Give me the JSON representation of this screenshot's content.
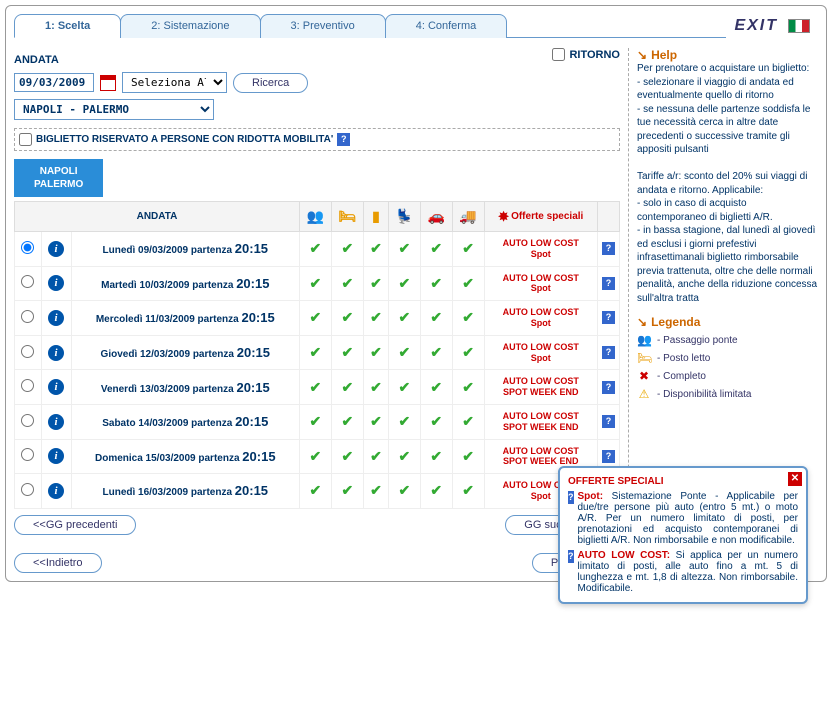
{
  "tabs": [
    {
      "label": "1: Scelta"
    },
    {
      "label": "2: Sistemazione"
    },
    {
      "label": "3: Preventivo"
    },
    {
      "label": "4: Conferma"
    }
  ],
  "exit_label": "EXIT",
  "andata_label": "ANDATA",
  "ritorno_label": "RITORNO",
  "date_value": "09/03/2009",
  "allot_value": "Seleziona Allotm",
  "route_value": "NAPOLI - PALERMO",
  "ricerca_label": "Ricerca",
  "disabled_ticket_label": "BIGLIETTO RISERVATO A PERSONE CON RIDOTTA MOBILITA'",
  "route_btn_line1": "NAPOLI",
  "route_btn_line2": "PALERMO",
  "col_andata": "ANDATA",
  "col_offerte": "Offerte speciali",
  "rows": [
    {
      "day": "Lunedì 09/03/2009 partenza",
      "time": "20:15",
      "offer1": "AUTO LOW COST",
      "offer2": "Spot",
      "selected": true
    },
    {
      "day": "Martedì 10/03/2009 partenza",
      "time": "20:15",
      "offer1": "AUTO LOW COST",
      "offer2": "Spot",
      "selected": false
    },
    {
      "day": "Mercoledì 11/03/2009 partenza",
      "time": "20:15",
      "offer1": "AUTO LOW COST",
      "offer2": "Spot",
      "selected": false
    },
    {
      "day": "Giovedì 12/03/2009 partenza",
      "time": "20:15",
      "offer1": "AUTO LOW COST",
      "offer2": "Spot",
      "selected": false
    },
    {
      "day": "Venerdì 13/03/2009 partenza",
      "time": "20:15",
      "offer1": "AUTO LOW COST",
      "offer2": "SPOT WEEK END",
      "selected": false
    },
    {
      "day": "Sabato 14/03/2009 partenza",
      "time": "20:15",
      "offer1": "AUTO LOW COST",
      "offer2": "SPOT WEEK END",
      "selected": false
    },
    {
      "day": "Domenica 15/03/2009 partenza",
      "time": "20:15",
      "offer1": "AUTO LOW COST",
      "offer2": "SPOT WEEK END",
      "selected": false
    },
    {
      "day": "Lunedì 16/03/2009 partenza",
      "time": "20:15",
      "offer1": "AUTO LOW COST",
      "offer2": "Spot",
      "selected": false
    }
  ],
  "prev_days_label": "<<GG precedenti",
  "next_days_label": "GG successivi>",
  "indietro_label": "<<Indietro",
  "procedi_label": "Procedi>>",
  "help": {
    "title": "Help",
    "body1": "Per prenotare o acquistare un biglietto:",
    "body2": "- selezionare il viaggio di andata ed eventualmente quello di ritorno",
    "body3": "- se nessuna delle partenze soddisfa le tue necessità cerca in altre date precedenti o successive tramite gli appositi pulsanti",
    "tariffe": "Tariffe a/r: sconto del 20% sui viaggi di andata e ritorno. Applicabile:",
    "t1": "- solo in caso di acquisto contemporaneo di biglietti A/R.",
    "t2": "- in bassa stagione, dal lunedì al giovedì ed esclusi i giorni prefestivi infrasettimanali biglietto rimborsabile previa trattenuta, oltre che delle normali penalità, anche della riduzione concessa sull'altra tratta"
  },
  "legenda_title": "Legenda",
  "legend": [
    {
      "icon": "👥",
      "color": "#e89b00",
      "label": "- Passaggio ponte"
    },
    {
      "icon": "🛏",
      "color": "#e89b00",
      "label": "- Posto letto"
    },
    {
      "icon": "✖",
      "color": "#c00",
      "label": "- Completo"
    },
    {
      "icon": "⚠",
      "color": "#e8a800",
      "label": "- Disponibilità limitata"
    }
  ],
  "tooltip": {
    "title": "OFFERTE SPECIALI",
    "spot_label": "Spot:",
    "spot_text": " Sistemazione Ponte - Applicabile per due/tre persone più auto (entro 5 mt.) o moto A/R. Per un numero limitato di posti, per prenotazioni ed acquisto contemporanei di biglietti A/R. Non rimborsabile e non modificabile.",
    "alc_label": "AUTO LOW COST:",
    "alc_text": " Si applica per un numero limitato di posti, alle auto fino a mt. 5 di lunghezza e mt. 1,8 di altezza. Non rimborsabile. Modificabile."
  }
}
